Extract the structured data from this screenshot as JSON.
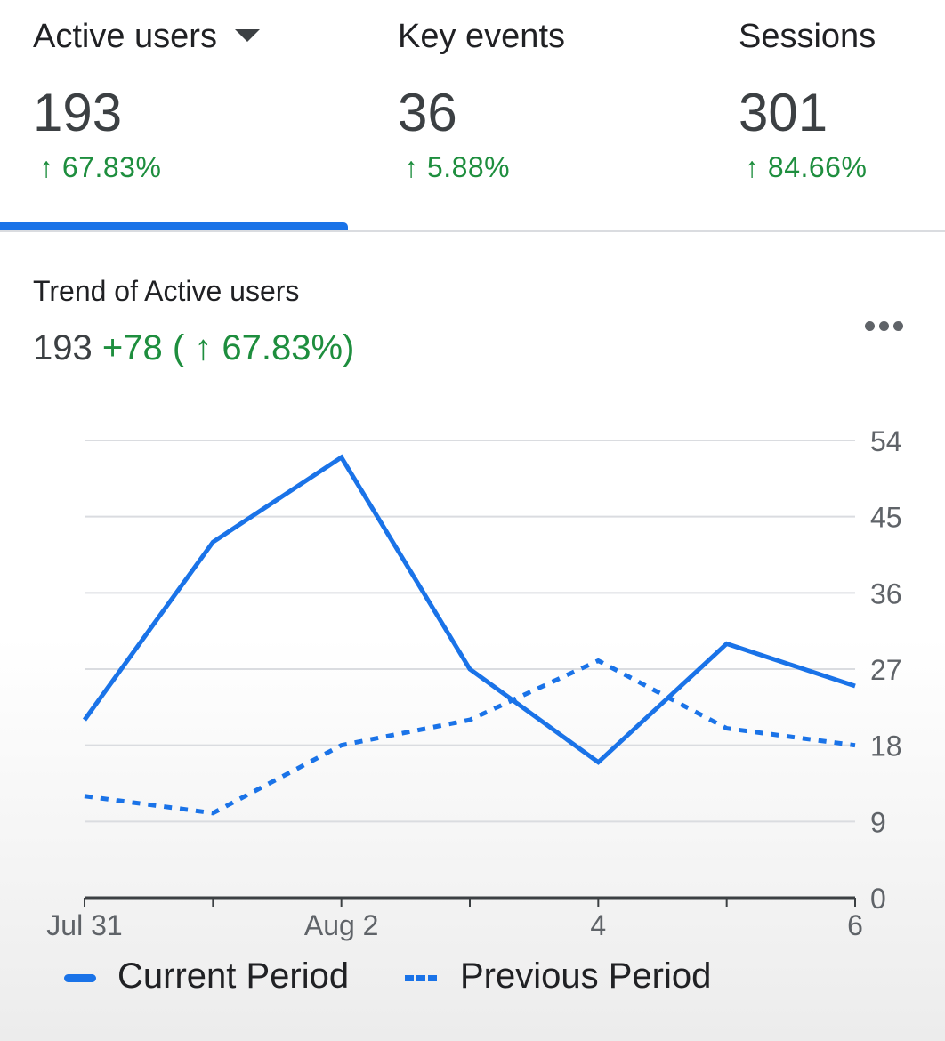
{
  "tabs": [
    {
      "title": "Active users",
      "value": "193",
      "change": "↑ 67.83%",
      "has_dropdown": true,
      "selected": true
    },
    {
      "title": "Key events",
      "value": "36",
      "change": "↑ 5.88%"
    },
    {
      "title": "Sessions",
      "value": "301",
      "change": "↑ 84.66%"
    }
  ],
  "card": {
    "title": "Trend of Active users",
    "summary_value": "193",
    "summary_change": "+78 ( ↑ 67.83%)",
    "more_icon": "more-horizontal-icon"
  },
  "colors": {
    "accent": "#1a73e8",
    "positive": "#1e8e3e",
    "grid": "#dadce0"
  },
  "chart_data": {
    "type": "line",
    "x": [
      "Jul 31",
      "Aug 1",
      "Aug 2",
      "Aug 3",
      "Aug 4",
      "Aug 5",
      "Aug 6"
    ],
    "x_tick_labels": [
      {
        "index": 0,
        "label": "Jul 31"
      },
      {
        "index": 2,
        "label": "Aug 2"
      },
      {
        "index": 4,
        "label": "4"
      },
      {
        "index": 6,
        "label": "6"
      }
    ],
    "y_ticks": [
      0,
      9,
      18,
      27,
      36,
      45,
      54
    ],
    "ylim": [
      0,
      54
    ],
    "y_axis_side": "right",
    "grid": true,
    "legend_position": "bottom",
    "series": [
      {
        "name": "Current Period",
        "style": "solid",
        "values": [
          21,
          42,
          52,
          27,
          16,
          30,
          25
        ]
      },
      {
        "name": "Previous Period",
        "style": "dotted",
        "values": [
          12,
          10,
          18,
          21,
          28,
          20,
          18
        ]
      }
    ]
  }
}
